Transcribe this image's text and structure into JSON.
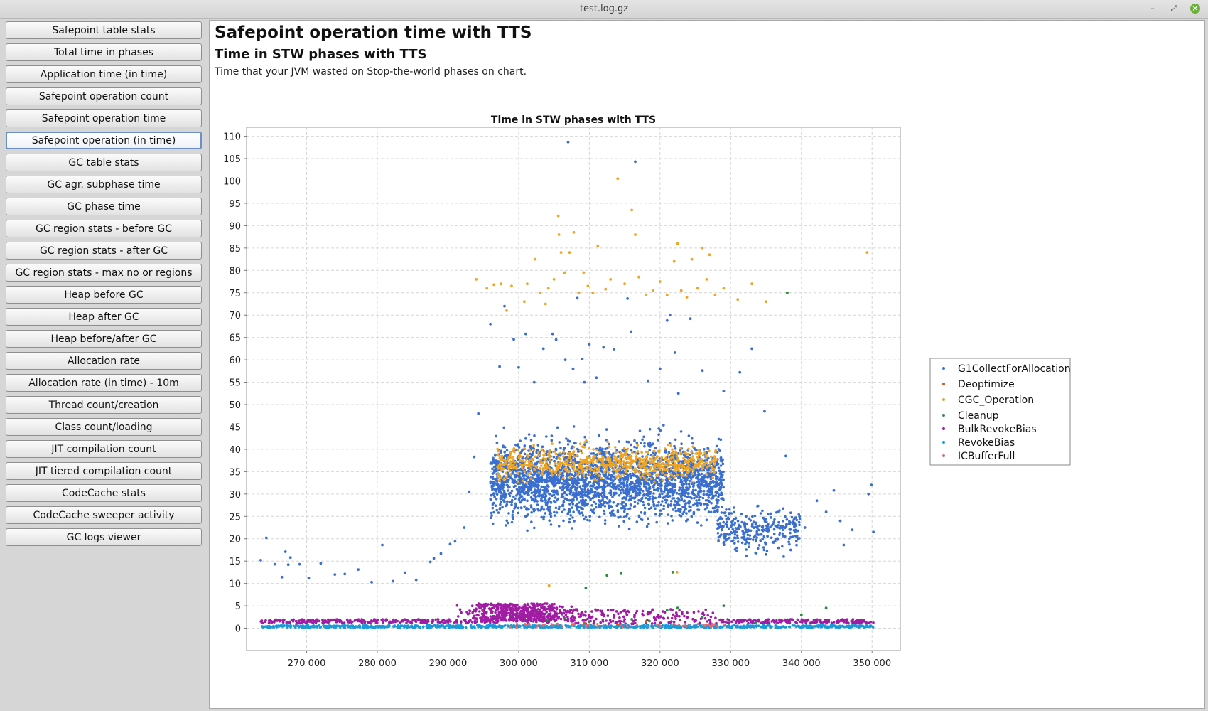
{
  "window": {
    "title": "test.log.gz"
  },
  "sidebar": {
    "items": [
      {
        "label": "Safepoint table stats"
      },
      {
        "label": "Total time in phases"
      },
      {
        "label": "Application time (in time)"
      },
      {
        "label": "Safepoint operation count"
      },
      {
        "label": "Safepoint operation time"
      },
      {
        "label": "Safepoint operation (in time)",
        "active": true
      },
      {
        "label": "GC table stats"
      },
      {
        "label": "GC agr. subphase time"
      },
      {
        "label": "GC phase time"
      },
      {
        "label": "GC region stats - before GC"
      },
      {
        "label": "GC region stats - after GC"
      },
      {
        "label": "GC region stats - max no or regions"
      },
      {
        "label": "Heap before GC"
      },
      {
        "label": "Heap after GC"
      },
      {
        "label": "Heap before/after GC"
      },
      {
        "label": "Allocation rate"
      },
      {
        "label": "Allocation rate (in time) - 10m"
      },
      {
        "label": "Thread count/creation"
      },
      {
        "label": "Class count/loading"
      },
      {
        "label": "JIT compilation count"
      },
      {
        "label": "JIT tiered compilation count"
      },
      {
        "label": "CodeCache stats"
      },
      {
        "label": "CodeCache sweeper activity"
      },
      {
        "label": "GC logs viewer"
      }
    ]
  },
  "main": {
    "title": "Safepoint operation time with TTS",
    "subtitle": "Time in STW phases with TTS",
    "description": "Time that your JVM wasted on Stop-the-world phases on chart."
  },
  "chart_data": {
    "type": "scatter",
    "title": "Time in STW phases with TTS",
    "xlabel": "",
    "ylabel": "",
    "xlim": [
      261500,
      354000
    ],
    "ylim": [
      -5,
      112
    ],
    "x_ticks": [
      270000,
      280000,
      290000,
      300000,
      310000,
      320000,
      330000,
      340000,
      350000
    ],
    "x_tick_labels": [
      "270 000",
      "280 000",
      "290 000",
      "300 000",
      "310 000",
      "320 000",
      "330 000",
      "340 000",
      "350 000"
    ],
    "y_ticks": [
      0,
      5,
      10,
      15,
      20,
      25,
      30,
      35,
      40,
      45,
      50,
      55,
      60,
      65,
      70,
      75,
      80,
      85,
      90,
      95,
      100,
      105,
      110
    ],
    "grid": true,
    "legend_position": "right",
    "series": [
      {
        "name": "G1CollectForAllocation",
        "color": "#3a6fd0",
        "points": [
          [
            263500,
            15.2
          ],
          [
            264300,
            20.2
          ],
          [
            265500,
            14.3
          ],
          [
            266500,
            11.4
          ],
          [
            267000,
            17.1
          ],
          [
            267400,
            14.2
          ],
          [
            267700,
            15.8
          ],
          [
            269000,
            14.3
          ],
          [
            270300,
            11.2
          ],
          [
            272000,
            14.5
          ],
          [
            274000,
            12
          ],
          [
            275400,
            12.1
          ],
          [
            277300,
            13.1
          ],
          [
            279200,
            10.3
          ],
          [
            280700,
            18.6
          ],
          [
            282200,
            10.5
          ],
          [
            283900,
            12.4
          ],
          [
            285500,
            10.8
          ],
          [
            287500,
            14.8
          ],
          [
            288000,
            15.6
          ],
          [
            289000,
            16.7
          ],
          [
            290300,
            18.8
          ],
          [
            291000,
            19.4
          ],
          [
            292300,
            22.5
          ],
          [
            293000,
            30.5
          ],
          [
            293700,
            38.3
          ],
          [
            294300,
            48
          ],
          [
            296000,
            68
          ],
          [
            297300,
            58.5
          ],
          [
            298000,
            72
          ],
          [
            299300,
            64.6
          ],
          [
            300000,
            58.3
          ],
          [
            301000,
            65.8
          ],
          [
            302200,
            55
          ],
          [
            303500,
            62.5
          ],
          [
            304800,
            65.8
          ],
          [
            305300,
            64.5
          ],
          [
            306600,
            60
          ],
          [
            307000,
            108.7
          ],
          [
            307700,
            58
          ],
          [
            308300,
            73.8
          ],
          [
            309000,
            60.2
          ],
          [
            309300,
            55
          ],
          [
            310000,
            63.5
          ],
          [
            311000,
            56
          ],
          [
            312000,
            62.8
          ],
          [
            313500,
            62.4
          ],
          [
            315400,
            73.7
          ],
          [
            315900,
            66.3
          ],
          [
            316500,
            104.3
          ],
          [
            318300,
            55.3
          ],
          [
            320000,
            58
          ],
          [
            321000,
            68.8
          ],
          [
            321400,
            70
          ],
          [
            322100,
            61.6
          ],
          [
            322600,
            52.5
          ],
          [
            324300,
            69.2
          ],
          [
            326000,
            57.6
          ],
          [
            329000,
            53
          ],
          [
            331300,
            57.2
          ],
          [
            333000,
            62.5
          ],
          [
            334800,
            48.5
          ],
          [
            335000,
            16.5
          ],
          [
            337500,
            16
          ],
          [
            337800,
            38.5
          ],
          [
            338500,
            17.5
          ],
          [
            339300,
            19.5
          ],
          [
            340500,
            22.5
          ],
          [
            342200,
            28.5
          ],
          [
            343500,
            26
          ],
          [
            344600,
            30.8
          ],
          [
            345500,
            24
          ],
          [
            346000,
            18.6
          ],
          [
            347200,
            22
          ],
          [
            349500,
            30
          ],
          [
            349900,
            32
          ],
          [
            350200,
            21.5
          ]
        ]
      },
      {
        "name": "Deoptimize",
        "color": "#d9541a",
        "points": [
          [
            309300,
            1.2
          ],
          [
            314000,
            0.8
          ],
          [
            318000,
            1.5
          ]
        ]
      },
      {
        "name": "CGC_Operation",
        "color": "#efa524",
        "points": [
          [
            294000,
            78
          ],
          [
            295500,
            76
          ],
          [
            296500,
            76.8
          ],
          [
            297500,
            77
          ],
          [
            298300,
            71
          ],
          [
            299000,
            76.5
          ],
          [
            300800,
            73
          ],
          [
            301200,
            77
          ],
          [
            302300,
            82.5
          ],
          [
            303000,
            75
          ],
          [
            303800,
            72.5
          ],
          [
            304200,
            76
          ],
          [
            305000,
            78
          ],
          [
            305600,
            92.2
          ],
          [
            305700,
            88
          ],
          [
            306000,
            84
          ],
          [
            306500,
            79.5
          ],
          [
            307200,
            84
          ],
          [
            307800,
            88.5
          ],
          [
            308500,
            75
          ],
          [
            309200,
            79.5
          ],
          [
            309800,
            76.5
          ],
          [
            310500,
            75
          ],
          [
            311200,
            85.5
          ],
          [
            312300,
            75.8
          ],
          [
            313000,
            78
          ],
          [
            314000,
            100.5
          ],
          [
            315000,
            77
          ],
          [
            316000,
            93.5
          ],
          [
            316500,
            88
          ],
          [
            317000,
            78.5
          ],
          [
            318000,
            74.5
          ],
          [
            319000,
            75.5
          ],
          [
            320000,
            77.5
          ],
          [
            321000,
            74.5
          ],
          [
            322000,
            82
          ],
          [
            322500,
            86
          ],
          [
            323000,
            75.5
          ],
          [
            323800,
            74
          ],
          [
            324500,
            82.5
          ],
          [
            325300,
            76
          ],
          [
            326000,
            85
          ],
          [
            326600,
            78
          ],
          [
            327000,
            83.5
          ],
          [
            327800,
            74.5
          ],
          [
            329000,
            76
          ],
          [
            331000,
            73.5
          ],
          [
            333000,
            77
          ],
          [
            335000,
            73
          ],
          [
            338000,
            75
          ],
          [
            349300,
            84
          ],
          [
            304300,
            9.5
          ],
          [
            322400,
            12.5
          ]
        ]
      },
      {
        "name": "Cleanup",
        "color": "#2a8c3f",
        "points": [
          [
            304000,
            1.8
          ],
          [
            306500,
            2.2
          ],
          [
            309500,
            9
          ],
          [
            310000,
            1.5
          ],
          [
            312500,
            11.8
          ],
          [
            314500,
            12.2
          ],
          [
            316000,
            2
          ],
          [
            318500,
            1.6
          ],
          [
            321000,
            4
          ],
          [
            321800,
            12.5
          ],
          [
            322500,
            4.5
          ],
          [
            326000,
            2.5
          ],
          [
            329000,
            5
          ],
          [
            333500,
            1.2
          ],
          [
            338000,
            75
          ],
          [
            340000,
            3
          ],
          [
            343500,
            4.5
          ]
        ]
      },
      {
        "name": "BulkRevokeBias",
        "color": "#a01ca3",
        "points": [
          [
            305000,
            2
          ],
          [
            310000,
            2.5
          ],
          [
            315000,
            2
          ],
          [
            320000,
            2.5
          ]
        ]
      },
      {
        "name": "RevokeBias",
        "color": "#1a9ad6",
        "points": [
          [
            305000,
            0.3
          ],
          [
            315000,
            0.3
          ],
          [
            325000,
            0.3
          ]
        ]
      },
      {
        "name": "ICBufferFull",
        "color": "#e06a6a",
        "points": [
          [
            310000,
            0.6
          ],
          [
            320000,
            0.5
          ]
        ]
      }
    ]
  }
}
